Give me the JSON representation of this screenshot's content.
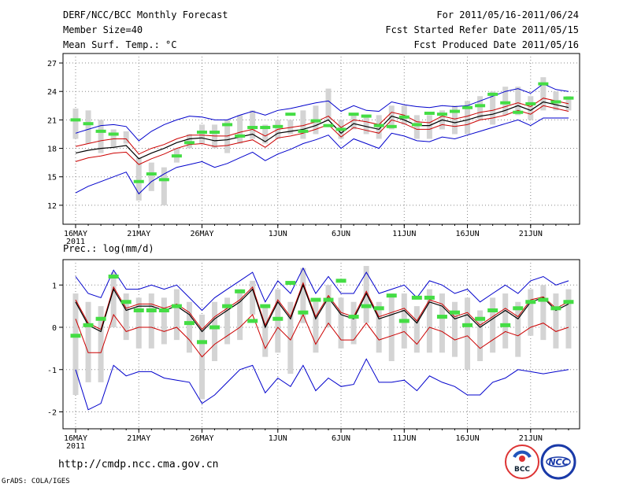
{
  "header": {
    "left_line1": "DERF/NCC/BCC Monthly Forecast",
    "left_line2": "Member Size=40",
    "left_line3": "Mean Surf. Temp.: °C",
    "right_line1": "For 2011/05/16-2011/06/24",
    "right_line2": "Fcst Started Refer Date 2011/05/15",
    "right_line3": "Fcst Produced Date 2011/05/16"
  },
  "panel2_title": "Prec.: log(mm/d)",
  "footer": {
    "url": "http://cmdp.ncc.cma.gov.cn",
    "credit": "GrADS: COLA/IGES",
    "logo1_text": "BCC",
    "logo2_text": "NCC"
  },
  "colors": {
    "median": "#000000",
    "lower": "#cc0000",
    "bounds": "#0000cc",
    "box": "#d4d4d4",
    "obs": "#44dd44",
    "grid": "#888888"
  },
  "chart_data": [
    {
      "type": "line",
      "title": "Mean Surf. Temp.: °C",
      "x_tick_labels": [
        "16MAY",
        "21MAY",
        "26MAY",
        "1JUN",
        "6JUN",
        "11JUN",
        "16JUN",
        "21JUN"
      ],
      "x_year_label": "2011",
      "x_tick_day_index": [
        0,
        5,
        10,
        16,
        21,
        26,
        31,
        36
      ],
      "days": 40,
      "ylim": [
        10,
        28
      ],
      "yticks": [
        12,
        15,
        18,
        21,
        24,
        27
      ],
      "series": [
        {
          "name": "ensemble-median",
          "values": [
            17.5,
            17.8,
            18.0,
            18.1,
            18.3,
            16.9,
            17.5,
            18.0,
            18.6,
            19.0,
            19.1,
            18.8,
            18.9,
            19.2,
            19.5,
            18.7,
            19.6,
            19.8,
            20.0,
            20.4,
            21.0,
            19.6,
            20.6,
            20.3,
            20.0,
            21.4,
            21.0,
            20.4,
            20.4,
            21.0,
            20.7,
            21.0,
            21.4,
            21.6,
            22.0,
            22.5,
            22.0,
            22.9,
            22.6,
            22.3
          ]
        },
        {
          "name": "upper-quantile",
          "values": [
            18.2,
            18.5,
            18.8,
            19.0,
            19.0,
            17.4,
            18.0,
            18.4,
            19.0,
            19.4,
            19.4,
            19.3,
            19.3,
            19.7,
            20.0,
            19.3,
            20.0,
            20.2,
            20.4,
            20.8,
            21.4,
            20.2,
            21.0,
            20.8,
            20.5,
            21.8,
            21.5,
            20.8,
            20.7,
            21.4,
            21.1,
            21.4,
            21.8,
            22.0,
            22.4,
            22.8,
            22.4,
            23.3,
            23.0,
            22.7
          ]
        },
        {
          "name": "lower-quantile",
          "values": [
            16.6,
            17.0,
            17.2,
            17.5,
            17.6,
            16.3,
            16.9,
            17.4,
            18.0,
            18.4,
            18.5,
            18.2,
            18.3,
            18.6,
            18.9,
            18.1,
            19.1,
            19.3,
            19.6,
            20.0,
            20.5,
            19.2,
            20.2,
            19.9,
            19.6,
            21.0,
            20.6,
            20.0,
            20.0,
            20.5,
            20.3,
            20.5,
            21.0,
            21.2,
            21.5,
            22.0,
            21.6,
            22.5,
            22.2,
            21.9
          ]
        },
        {
          "name": "ensemble-max",
          "values": [
            19.6,
            20.0,
            20.4,
            20.5,
            20.3,
            18.8,
            19.8,
            20.5,
            21.0,
            21.4,
            21.3,
            21.0,
            21.0,
            21.5,
            21.9,
            21.5,
            22.0,
            22.2,
            22.5,
            22.8,
            23.0,
            21.9,
            22.5,
            22.0,
            21.9,
            22.9,
            22.6,
            22.4,
            22.3,
            22.5,
            22.4,
            22.5,
            23.0,
            23.5,
            24.0,
            24.3,
            23.8,
            24.8,
            24.2,
            24.0
          ]
        },
        {
          "name": "ensemble-min",
          "values": [
            13.3,
            14.0,
            14.5,
            15.0,
            15.5,
            13.2,
            14.5,
            15.3,
            16.0,
            16.3,
            16.6,
            16.0,
            16.4,
            17.0,
            17.6,
            16.7,
            17.4,
            17.9,
            18.5,
            18.9,
            19.4,
            18.0,
            19.0,
            18.5,
            18.0,
            19.6,
            19.3,
            18.8,
            18.7,
            19.2,
            19.0,
            19.4,
            19.8,
            20.2,
            20.6,
            21.0,
            20.4,
            21.2,
            21.2,
            21.2
          ]
        }
      ],
      "box_whiskers": {
        "low": [
          19.0,
          18.5,
          17.5,
          18.0,
          18.5,
          12.5,
          13.5,
          12.0,
          16.5,
          18.0,
          18.5,
          18.0,
          17.5,
          18.5,
          19.0,
          18.5,
          19.0,
          19.5,
          19.0,
          19.5,
          21.0,
          19.0,
          20.0,
          19.5,
          19.0,
          20.0,
          20.5,
          19.0,
          19.0,
          20.0,
          19.5,
          19.5,
          21.0,
          20.5,
          21.5,
          21.5,
          21.0,
          22.0,
          22.0,
          22.0
        ],
        "high": [
          22.2,
          22.0,
          21.0,
          20.0,
          19.8,
          17.0,
          16.5,
          16.0,
          18.0,
          19.5,
          20.5,
          20.5,
          21.0,
          21.5,
          22.0,
          20.5,
          21.0,
          21.0,
          22.0,
          22.5,
          24.3,
          21.0,
          21.5,
          21.5,
          21.5,
          22.5,
          22.5,
          21.5,
          21.5,
          22.0,
          22.5,
          23.0,
          23.5,
          24.0,
          24.5,
          24.5,
          23.5,
          25.5,
          24.0,
          23.5
        ]
      },
      "observed": [
        21.0,
        20.6,
        19.8,
        19.5,
        null,
        14.5,
        15.3,
        14.7,
        17.2,
        18.6,
        19.7,
        19.7,
        20.5,
        19.3,
        20.2,
        20.2,
        20.3,
        21.6,
        19.8,
        20.9,
        20.4,
        20.0,
        21.6,
        21.4,
        20.4,
        20.3,
        21.3,
        20.5,
        21.7,
        21.6,
        21.9,
        22.3,
        22.5,
        23.7,
        22.8,
        21.8,
        22.7,
        24.8,
        22.9,
        23.3
      ]
    },
    {
      "type": "line",
      "title": "Prec.: log(mm/d)",
      "x_tick_labels": [
        "16MAY",
        "21MAY",
        "26MAY",
        "1JUN",
        "6JUN",
        "11JUN",
        "16JUN",
        "21JUN"
      ],
      "x_year_label": "2011",
      "x_tick_day_index": [
        0,
        5,
        10,
        16,
        21,
        26,
        31,
        36
      ],
      "days": 40,
      "ylim": [
        -2.4,
        1.6
      ],
      "yticks": [
        -2,
        -1,
        0,
        1
      ],
      "series": [
        {
          "name": "ensemble-median",
          "values": [
            0.6,
            0.05,
            -0.1,
            0.9,
            0.4,
            0.5,
            0.5,
            0.4,
            0.5,
            0.3,
            -0.1,
            0.2,
            0.4,
            0.6,
            0.9,
            0.0,
            0.6,
            0.2,
            1.0,
            0.2,
            0.7,
            0.3,
            0.2,
            0.8,
            0.2,
            0.3,
            0.4,
            0.1,
            0.6,
            0.5,
            0.2,
            0.3,
            0.0,
            0.2,
            0.4,
            0.2,
            0.6,
            0.7,
            0.4,
            0.55
          ]
        },
        {
          "name": "upper-quantile",
          "values": [
            0.65,
            0.1,
            -0.05,
            0.95,
            0.45,
            0.55,
            0.55,
            0.45,
            0.55,
            0.35,
            -0.05,
            0.25,
            0.45,
            0.65,
            0.95,
            0.05,
            0.65,
            0.25,
            1.05,
            0.25,
            0.75,
            0.35,
            0.25,
            0.85,
            0.25,
            0.35,
            0.45,
            0.15,
            0.65,
            0.55,
            0.25,
            0.35,
            0.05,
            0.25,
            0.45,
            0.25,
            0.65,
            0.72,
            0.45,
            0.6
          ]
        },
        {
          "name": "lower-quantile",
          "values": [
            0.2,
            -0.6,
            -0.6,
            0.3,
            -0.1,
            0.0,
            0.0,
            -0.1,
            0.0,
            -0.3,
            -0.7,
            -0.4,
            -0.2,
            0.0,
            0.3,
            -0.5,
            0.0,
            -0.3,
            0.3,
            -0.4,
            0.1,
            -0.3,
            -0.3,
            0.1,
            -0.3,
            -0.2,
            -0.1,
            -0.4,
            0.0,
            -0.1,
            -0.3,
            -0.2,
            -0.5,
            -0.3,
            -0.1,
            -0.2,
            0.0,
            0.1,
            -0.1,
            0.0
          ]
        },
        {
          "name": "ensemble-max",
          "values": [
            1.2,
            0.8,
            0.7,
            1.35,
            0.9,
            0.9,
            1.0,
            0.9,
            1.0,
            0.7,
            0.4,
            0.7,
            0.9,
            1.1,
            1.3,
            0.6,
            1.1,
            0.8,
            1.4,
            0.8,
            1.2,
            0.8,
            0.8,
            1.3,
            0.8,
            0.9,
            1.0,
            0.7,
            1.1,
            1.0,
            0.8,
            0.9,
            0.6,
            0.8,
            1.0,
            0.8,
            1.1,
            1.2,
            1.0,
            1.1
          ]
        },
        {
          "name": "ensemble-min",
          "values": [
            -1.0,
            -1.95,
            -1.8,
            -0.9,
            -1.15,
            -1.05,
            -1.05,
            -1.2,
            -1.25,
            -1.3,
            -1.8,
            -1.6,
            -1.3,
            -1.0,
            -0.9,
            -1.55,
            -1.2,
            -1.4,
            -0.9,
            -1.5,
            -1.2,
            -1.4,
            -1.35,
            -0.75,
            -1.3,
            -1.3,
            -1.25,
            -1.5,
            -1.15,
            -1.3,
            -1.4,
            -1.6,
            -1.6,
            -1.3,
            -1.2,
            -1.0,
            -1.05,
            -1.1,
            -1.05,
            -1.0
          ]
        }
      ],
      "box_whiskers": {
        "low": [
          -1.6,
          -1.3,
          -1.3,
          0.0,
          -0.3,
          -0.5,
          -0.5,
          -0.4,
          -0.3,
          -0.6,
          -1.7,
          -0.8,
          -0.4,
          -0.3,
          0.3,
          -0.7,
          -0.6,
          -1.1,
          0.1,
          -0.6,
          0.0,
          -0.5,
          -0.4,
          0.1,
          -0.6,
          -0.8,
          -0.5,
          -0.6,
          -0.6,
          -0.6,
          -0.7,
          -1.0,
          -0.8,
          -0.6,
          -0.5,
          -0.7,
          -0.2,
          -0.3,
          -0.5,
          -0.5
        ],
        "high": [
          0.8,
          0.6,
          0.5,
          1.3,
          0.8,
          0.7,
          0.8,
          0.7,
          0.9,
          0.6,
          0.3,
          0.6,
          0.7,
          0.9,
          1.1,
          0.5,
          0.9,
          0.6,
          1.4,
          0.6,
          1.0,
          0.7,
          0.6,
          1.45,
          0.6,
          0.8,
          0.8,
          0.5,
          0.9,
          0.8,
          0.6,
          0.7,
          0.4,
          0.7,
          0.8,
          0.6,
          0.9,
          1.0,
          0.8,
          0.9
        ]
      },
      "observed": [
        -0.2,
        0.05,
        0.2,
        1.2,
        0.6,
        0.4,
        0.4,
        0.4,
        0.5,
        0.1,
        -0.35,
        0.0,
        0.5,
        0.85,
        0.15,
        0.5,
        0.2,
        1.05,
        0.35,
        0.65,
        0.65,
        1.1,
        0.25,
        0.5,
        0.45,
        0.75,
        0.15,
        0.7,
        0.7,
        0.25,
        0.35,
        0.05,
        0.2,
        0.4,
        0.05,
        0.45,
        0.6,
        0.65,
        0.45,
        0.6
      ]
    }
  ]
}
